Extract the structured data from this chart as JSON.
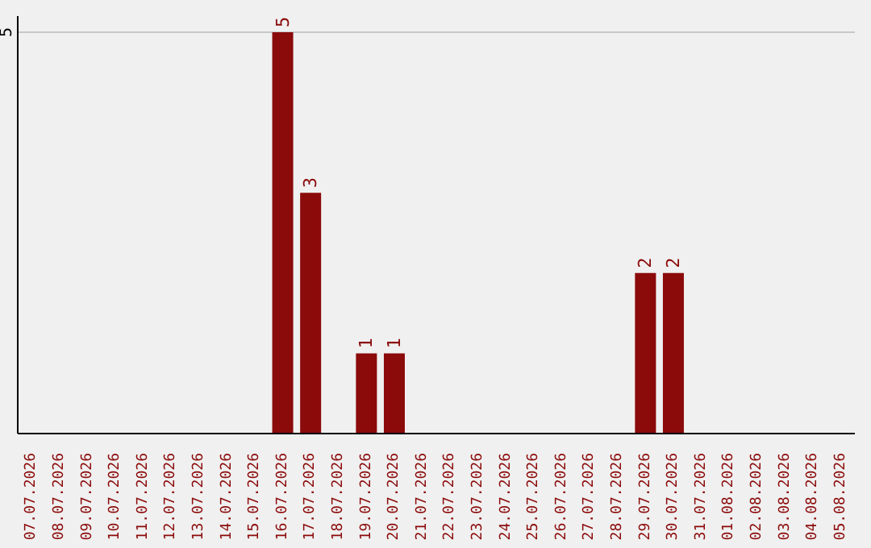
{
  "chart_data": {
    "type": "bar",
    "categories": [
      "07.07.2026",
      "08.07.2026",
      "09.07.2026",
      "10.07.2026",
      "11.07.2026",
      "12.07.2026",
      "13.07.2026",
      "14.07.2026",
      "15.07.2026",
      "16.07.2026",
      "17.07.2026",
      "18.07.2026",
      "19.07.2026",
      "20.07.2026",
      "21.07.2026",
      "22.07.2026",
      "23.07.2026",
      "24.07.2026",
      "25.07.2026",
      "26.07.2026",
      "27.07.2026",
      "28.07.2026",
      "29.07.2026",
      "30.07.2026",
      "31.07.2026",
      "01.08.2026",
      "02.08.2026",
      "03.08.2026",
      "04.08.2026",
      "05.08.2026"
    ],
    "values": [
      0,
      0,
      0,
      0,
      0,
      0,
      0,
      0,
      0,
      5,
      3,
      0,
      1,
      1,
      0,
      0,
      0,
      0,
      0,
      0,
      0,
      0,
      2,
      2,
      0,
      0,
      0,
      0,
      0,
      0
    ],
    "value_labels": [
      null,
      null,
      null,
      null,
      null,
      null,
      null,
      null,
      null,
      "5",
      "3",
      null,
      "1",
      "1",
      null,
      null,
      null,
      null,
      null,
      null,
      null,
      null,
      "2",
      "2",
      null,
      null,
      null,
      null,
      null,
      null
    ],
    "color": "#8b0a0a",
    "ylim": [
      0,
      5.2
    ],
    "yticks": [
      5
    ],
    "grid": "y"
  }
}
